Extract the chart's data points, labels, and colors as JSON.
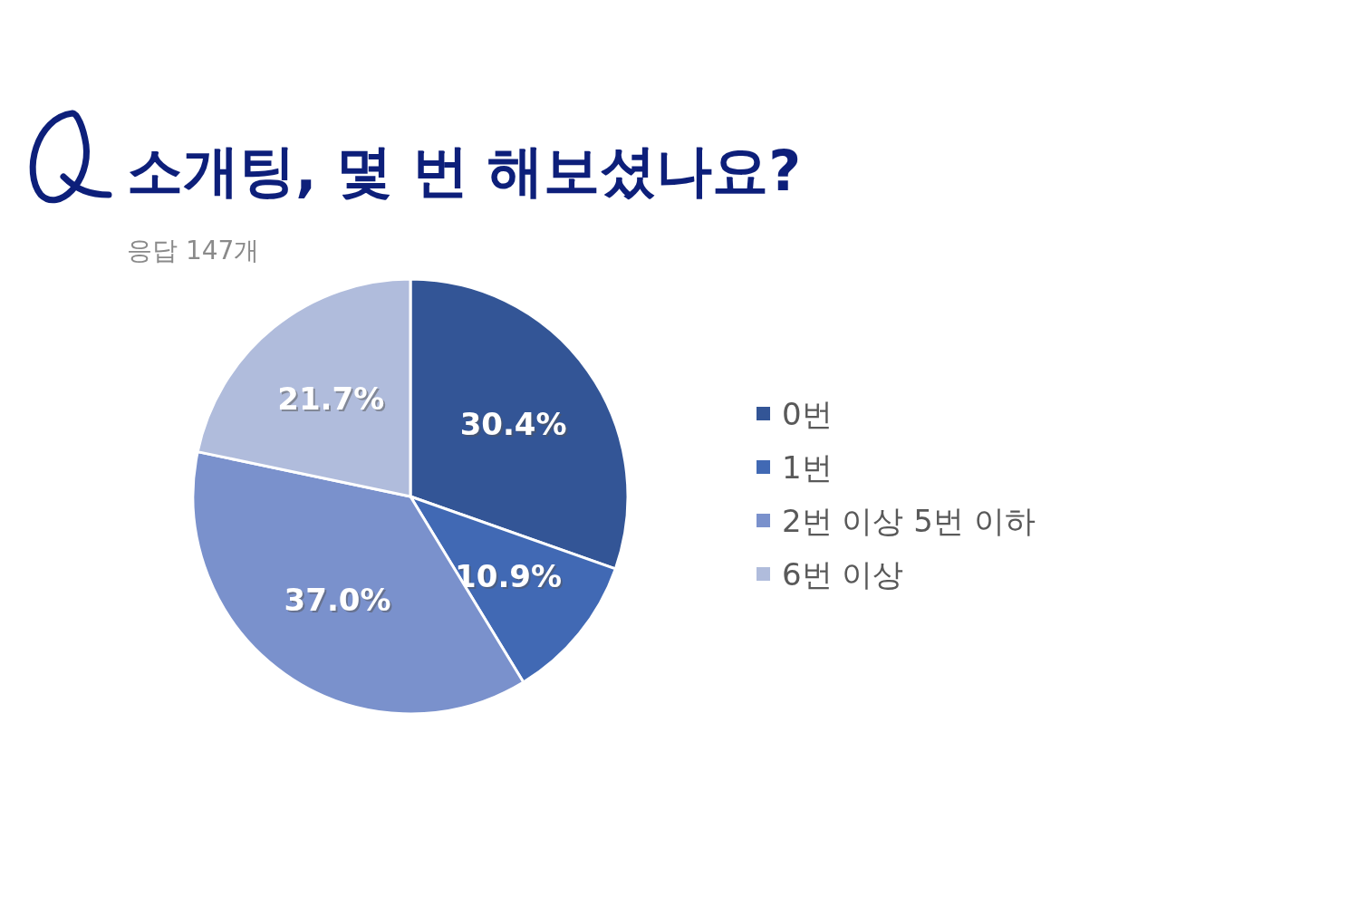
{
  "chart_data": {
    "type": "pie",
    "title": "소개팅, 몇 번 해보셨나요?",
    "subtitle": "응답 147개",
    "categories": [
      "0번",
      "1번",
      "2번 이상 5번 이하",
      "6번 이상"
    ],
    "values": [
      30.4,
      10.9,
      37.0,
      21.7
    ],
    "colors": [
      "#335596",
      "#4169b4",
      "#7a91cc",
      "#b0bcdc"
    ],
    "value_labels": [
      "30.4%",
      "10.9%",
      "37.0%",
      "21.7%"
    ],
    "legend": "right"
  }
}
